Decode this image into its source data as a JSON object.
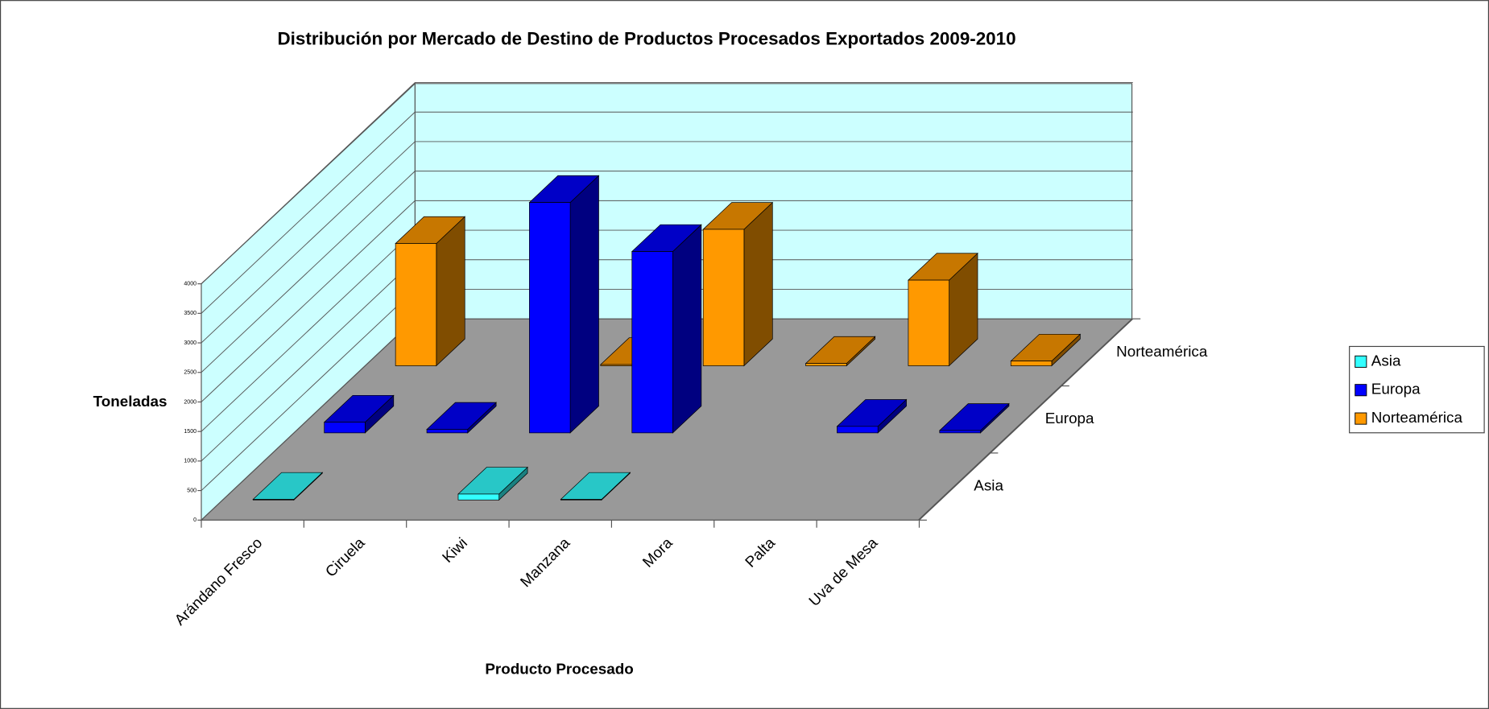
{
  "chart_data": {
    "type": "bar3d",
    "title": "Distribución por Mercado de Destino de Productos Procesados Exportados 2009-2010",
    "x_label": "Producto Procesado",
    "y_label": "Toneladas",
    "categories": [
      "Arándano Fresco",
      "Ciruela",
      "Kiwi",
      "Manzana",
      "Mora",
      "Palta",
      "Uva de Mesa"
    ],
    "series": [
      {
        "name": "Asia",
        "color": "#33ffff",
        "values": [
          10,
          null,
          100,
          10,
          null,
          null,
          null
        ]
      },
      {
        "name": "Europa",
        "color": "#0000ff",
        "values": [
          180,
          60,
          3900,
          3070,
          null,
          110,
          40
        ]
      },
      {
        "name": "Norteamérica",
        "color": "#ff9900",
        "values": [
          2070,
          null,
          20,
          2310,
          40,
          1450,
          80
        ]
      }
    ],
    "ylim": [
      0,
      4000
    ],
    "yticks": [
      0,
      500,
      1000,
      1500,
      2000,
      2500,
      3000,
      3500,
      4000
    ],
    "grid": true,
    "legend": "right"
  }
}
